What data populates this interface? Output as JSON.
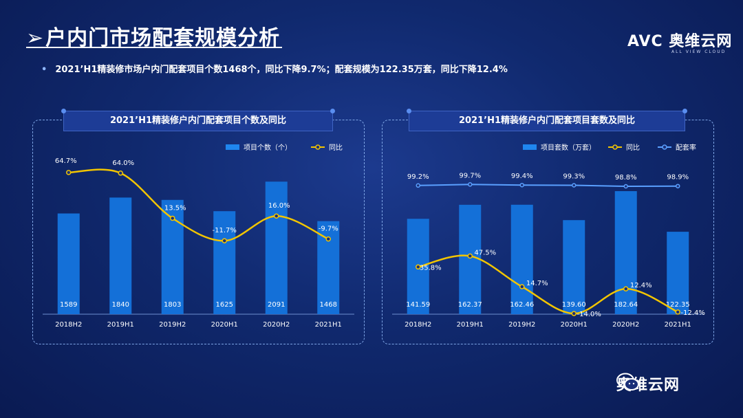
{
  "header": {
    "title": "户内门市场配套规模分析",
    "arrow": "➢",
    "bullet": "2021’H1精装修市场户内门配套项目个数1468个，同比下降9.7%；配套规模为122.35万套，同比下降12.4%"
  },
  "logo": {
    "main": "AVC 奥维云网",
    "sub": "ALL VIEW CLOUD"
  },
  "watermark": {
    "text": "奥维云网"
  },
  "colors": {
    "bar": "#1470d8",
    "bar_light": "#1f86ef",
    "yoy": "#f2c500",
    "rate": "#5aa0ff",
    "text": "#ffffff"
  },
  "chart_data": [
    {
      "type": "bar",
      "title": "2021’H1精装修户内门配套项目个数及同比",
      "categories": [
        "2018H2",
        "2019H1",
        "2019H2",
        "2020H1",
        "2020H2",
        "2021H1"
      ],
      "series": [
        {
          "name": "项目个数（个）",
          "kind": "bar",
          "values": [
            1589,
            1840,
            1803,
            1625,
            2091,
            1468
          ],
          "labels": [
            "1589",
            "1840",
            "1803",
            "1625",
            "2091",
            "1468"
          ]
        },
        {
          "name": "同比",
          "kind": "line",
          "values": [
            64.7,
            64.0,
            13.5,
            -11.7,
            16.0,
            -9.7
          ],
          "labels": [
            "64.7%",
            "64.0%",
            "13.5%",
            "-11.7%",
            "16.0%",
            "-9.7%"
          ]
        }
      ],
      "legend": "top-right"
    },
    {
      "type": "bar",
      "title": "2021’H1精装修户内门配套项目套数及同比",
      "categories": [
        "2018H2",
        "2019H1",
        "2019H2",
        "2020H1",
        "2020H2",
        "2021H1"
      ],
      "series": [
        {
          "name": "项目套数（万套）",
          "kind": "bar",
          "values": [
            141.59,
            162.37,
            162.46,
            139.6,
            182.64,
            122.35
          ],
          "labels": [
            "141.59",
            "162.37",
            "162.46",
            "139.60",
            "182.64",
            "122.35"
          ]
        },
        {
          "name": "同比",
          "kind": "line",
          "values": [
            35.8,
            47.5,
            14.7,
            -14.0,
            12.4,
            -12.4
          ],
          "labels": [
            "35.8%",
            "47.5%",
            "14.7%",
            "-14.0%",
            "12.4%",
            "-12.4%"
          ]
        },
        {
          "name": "配套率",
          "kind": "line",
          "values": [
            99.2,
            99.7,
            99.4,
            99.3,
            98.8,
            98.9
          ],
          "labels": [
            "99.2%",
            "99.7%",
            "99.4%",
            "99.3%",
            "98.8%",
            "98.9%"
          ]
        }
      ],
      "legend": "top-right"
    }
  ]
}
